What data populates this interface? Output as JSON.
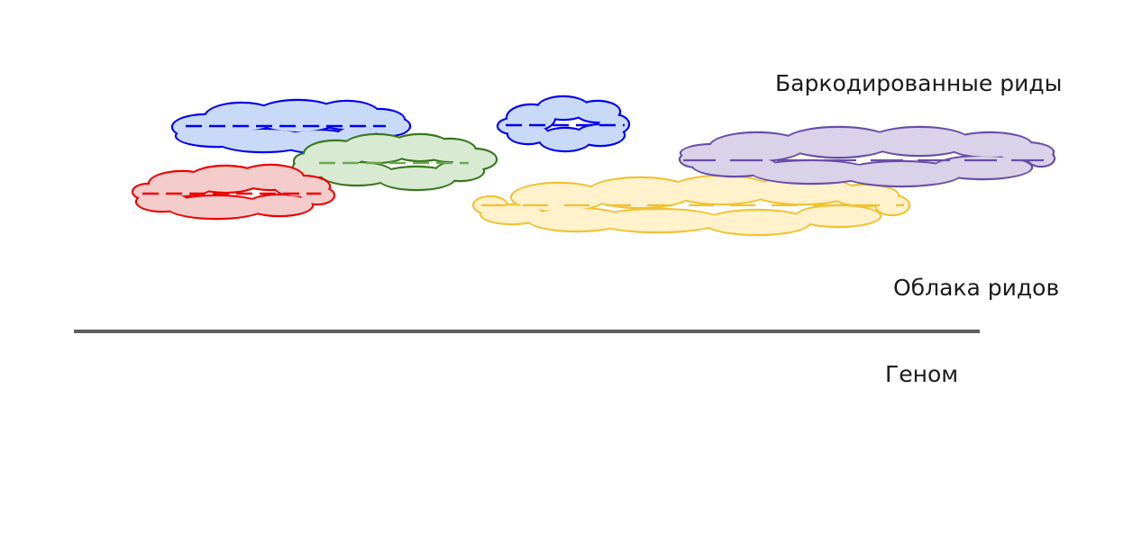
{
  "labels": {
    "barcoded_reads": "Баркодированные риды",
    "read_clouds": "Облака ридов",
    "genome": "Геном"
  },
  "clouds": [
    {
      "id": "blue-left",
      "fill": "#c9daf8",
      "stroke": "#0000ee",
      "dash": "#0000ee"
    },
    {
      "id": "blue-small",
      "fill": "#c9daf8",
      "stroke": "#0000ee",
      "dash": "#0000ee"
    },
    {
      "id": "green",
      "fill": "#d9ead3",
      "stroke": "#38761d",
      "dash": "#6aa84f"
    },
    {
      "id": "red",
      "fill": "#f4cccc",
      "stroke": "#ee0000",
      "dash": "#ee0000"
    },
    {
      "id": "yellow",
      "fill": "#fff2cc",
      "stroke": "#f1c232",
      "dash": "#f1c232"
    },
    {
      "id": "purple",
      "fill": "#d9d2e9",
      "stroke": "#674ea7",
      "dash": "#674ea7"
    }
  ],
  "colors": {
    "genome_line": "#5f5f5f",
    "text": "#1a1a1a"
  }
}
